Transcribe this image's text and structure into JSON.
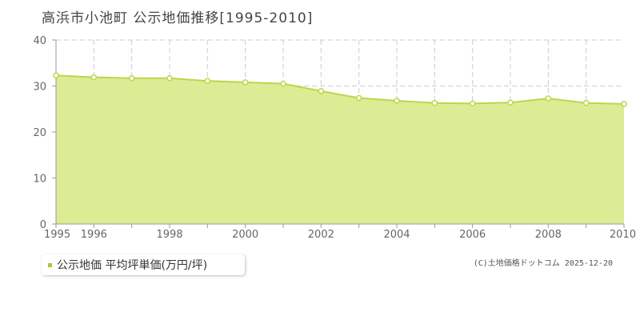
{
  "title": "高浜市小池町 公示地価推移[1995-2010]",
  "legend": {
    "label": "公示地価 平均坪単価(万円/坪)"
  },
  "credit": "(C)土地価格ドットコム 2025-12-20",
  "colors": {
    "area_fill": "#dcec95",
    "line": "#b8d84a",
    "marker_fill": "#ffffff",
    "grid": "#cccccc",
    "axis": "#999999",
    "legend_swatch": "#a7c83a"
  },
  "chart_data": {
    "type": "area",
    "x": [
      1995,
      1996,
      1997,
      1998,
      1999,
      2000,
      2001,
      2002,
      2003,
      2004,
      2005,
      2006,
      2007,
      2008,
      2009,
      2010
    ],
    "series": [
      {
        "name": "公示地価 平均坪単価(万円/坪)",
        "values": [
          32.3,
          31.9,
          31.7,
          31.7,
          31.1,
          30.8,
          30.5,
          28.9,
          27.4,
          26.8,
          26.3,
          26.2,
          26.4,
          27.3,
          26.3,
          26.1
        ]
      }
    ],
    "x_tick_labels": [
      "1995",
      "1996",
      "1998",
      "2000",
      "2002",
      "2004",
      "2006",
      "2008",
      "2010"
    ],
    "y_tick_labels": [
      "0",
      "10",
      "20",
      "30",
      "40"
    ],
    "xlim": [
      1995,
      2010
    ],
    "ylim": [
      0,
      40
    ],
    "grid": true,
    "legend_position": "bottom-left"
  }
}
